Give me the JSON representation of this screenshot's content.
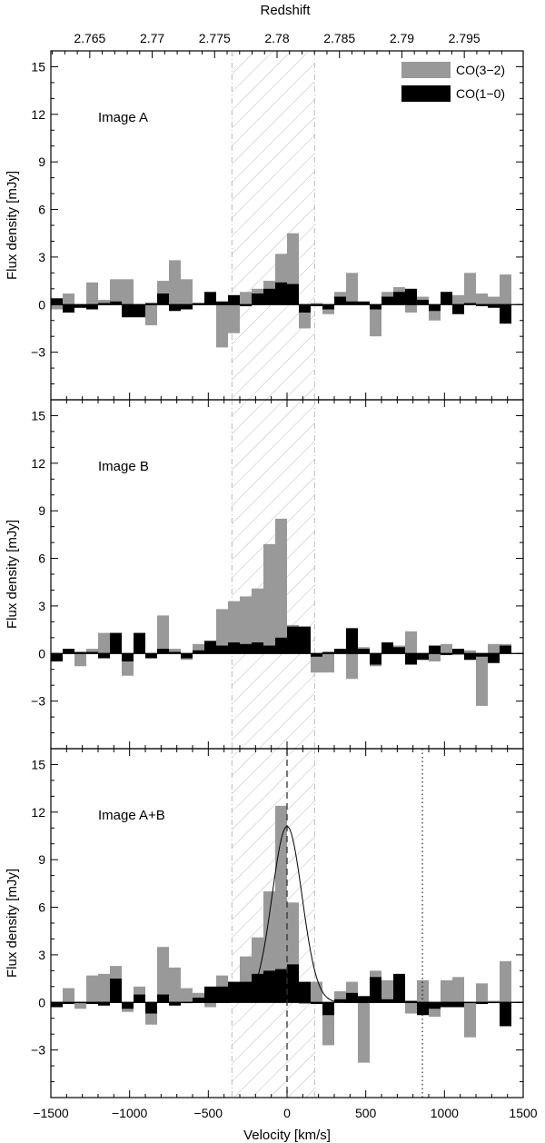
{
  "figure": {
    "xlabel": "Velocity [km/s]",
    "top_xlabel": "Redshift",
    "ylabel": "Flux density [mJy]"
  },
  "legend": [
    {
      "label": "CO(3−2)",
      "color": "#999999"
    },
    {
      "label": "CO(1−0)",
      "color": "#000000"
    }
  ],
  "chart_data": [
    {
      "type": "bar",
      "panel_label": "Image A",
      "xlim": [
        -1500,
        1500
      ],
      "ylim": [
        -6,
        16
      ],
      "x_ticks": [
        -1500,
        -1000,
        -500,
        0,
        500,
        1000,
        1500
      ],
      "y_ticks": [
        -3,
        0,
        3,
        6,
        9,
        12,
        15
      ],
      "top_ticks": [
        2.765,
        2.77,
        2.775,
        2.78,
        2.785,
        2.79,
        2.795
      ],
      "top_tick_labels": [
        "2.765",
        "2.77",
        "2.775",
        "2.78",
        "2.785",
        "2.79",
        "2.795"
      ],
      "shaded_region": [
        -350,
        175
      ],
      "bin_width": 75,
      "x_start": -1500,
      "series": [
        {
          "name": "CO(3−2)",
          "values": [
            -0.3,
            0.7,
            -0.2,
            1.4,
            0.3,
            1.6,
            1.6,
            -0.5,
            -1.3,
            1.5,
            2.8,
            1.6,
            0.1,
            0.1,
            -2.7,
            -1.8,
            0.8,
            1.0,
            1.5,
            3.2,
            4.5,
            -1.5,
            0.1,
            -0.6,
            0.8,
            2.0,
            0.1,
            -2.0,
            0.8,
            1.1,
            -0.5,
            0.5,
            -1.0,
            0.8,
            0.6,
            2.0,
            0.7,
            0.5,
            1.9
          ]
        },
        {
          "name": "CO(1−0)",
          "values": [
            0.4,
            -0.5,
            -0.2,
            -0.3,
            0.1,
            0.2,
            -0.8,
            -0.8,
            0.1,
            0.7,
            -0.4,
            -0.3,
            0.1,
            0.8,
            0.2,
            0.6,
            -0.1,
            0.7,
            1.0,
            1.4,
            1.3,
            -0.5,
            -0.1,
            -0.3,
            0.5,
            0.2,
            0.2,
            -0.3,
            0.5,
            0.8,
            1.0,
            0.3,
            -0.4,
            0.8,
            -0.6,
            0.1,
            -0.1,
            -0.2,
            -1.2
          ]
        }
      ]
    },
    {
      "type": "bar",
      "panel_label": "Image B",
      "xlim": [
        -1500,
        1500
      ],
      "ylim": [
        -6,
        16
      ],
      "x_ticks": [
        -1500,
        -1000,
        -500,
        0,
        500,
        1000,
        1500
      ],
      "y_ticks": [
        -3,
        0,
        3,
        6,
        9,
        12,
        15
      ],
      "shaded_region": [
        -350,
        175
      ],
      "bin_width": 75,
      "x_start": -1500,
      "series": [
        {
          "name": "CO(3−2)",
          "values": [
            -0.3,
            0.2,
            -0.8,
            0.3,
            1.3,
            0.5,
            -1.4,
            0.5,
            -0.3,
            2.4,
            0.3,
            -0.4,
            0.6,
            0.4,
            2.8,
            3.3,
            3.6,
            4.1,
            6.9,
            8.5,
            1.8,
            1.5,
            -1.2,
            -1.2,
            0.3,
            -1.6,
            0.4,
            -0.8,
            0.7,
            0.5,
            1.4,
            -0.2,
            -0.5,
            0.6,
            -0.1,
            0.2,
            -3.3,
            0.6,
            0.6
          ]
        },
        {
          "name": "CO(1−0)",
          "values": [
            -0.5,
            0.3,
            0.1,
            0.1,
            -0.3,
            1.3,
            -0.5,
            1.3,
            -0.3,
            0.3,
            0.1,
            -0.3,
            0.2,
            0.8,
            0.5,
            0.7,
            0.6,
            0.7,
            0.5,
            1.0,
            1.7,
            1.7,
            -0.2,
            0.1,
            0.3,
            1.6,
            0.3,
            -0.7,
            0.7,
            0.4,
            -0.7,
            -0.4,
            0.5,
            -0.1,
            0.3,
            -0.4,
            -0.2,
            -0.6,
            0.5
          ]
        }
      ]
    },
    {
      "type": "bar",
      "panel_label": "Image A+B",
      "xlim": [
        -1500,
        1500
      ],
      "ylim": [
        -6,
        16
      ],
      "x_ticks": [
        -1500,
        -1000,
        -500,
        0,
        500,
        1000,
        1500
      ],
      "x_tick_labels": [
        "−1500",
        "−1000",
        "−500",
        "0",
        "500",
        "1000",
        "1500"
      ],
      "y_ticks": [
        -3,
        0,
        3,
        6,
        9,
        12,
        15
      ],
      "shaded_region": [
        -350,
        175
      ],
      "vertical_dashed_line": 0,
      "vertical_dotted_line": 860,
      "gaussian_fit": {
        "amplitude": 11.1,
        "center": 0,
        "sigma": 95
      },
      "bin_width": 75,
      "x_start": -1500,
      "series": [
        {
          "name": "CO(3−2)",
          "values": [
            -0.2,
            0.9,
            -0.4,
            1.7,
            1.8,
            2.3,
            -0.6,
            1.0,
            -1.4,
            3.5,
            2.2,
            0.9,
            0.6,
            -0.3,
            1.7,
            1.2,
            2.9,
            4.1,
            7.0,
            12.4,
            6.3,
            -0.1,
            1.3,
            -2.7,
            0.7,
            1.3,
            -3.8,
            2.0,
            1.4,
            1.0,
            -0.7,
            1.4,
            -0.9,
            1.4,
            1.6,
            -2.2,
            1.2,
            0.1,
            2.6
          ]
        },
        {
          "name": "CO(1−0)",
          "values": [
            -0.3,
            -0.1,
            0.0,
            -0.1,
            -0.2,
            1.5,
            -0.4,
            0.5,
            -0.7,
            0.5,
            -0.2,
            0.0,
            0.3,
            1.0,
            1.0,
            1.3,
            1.3,
            1.8,
            2.0,
            2.1,
            2.4,
            1.3,
            -0.1,
            -0.8,
            0.2,
            0.6,
            0.4,
            1.6,
            0.2,
            1.8,
            0.1,
            -0.8,
            -0.4,
            -0.3,
            -0.3,
            0.0,
            -0.1,
            0.0,
            -1.5
          ]
        }
      ]
    }
  ]
}
